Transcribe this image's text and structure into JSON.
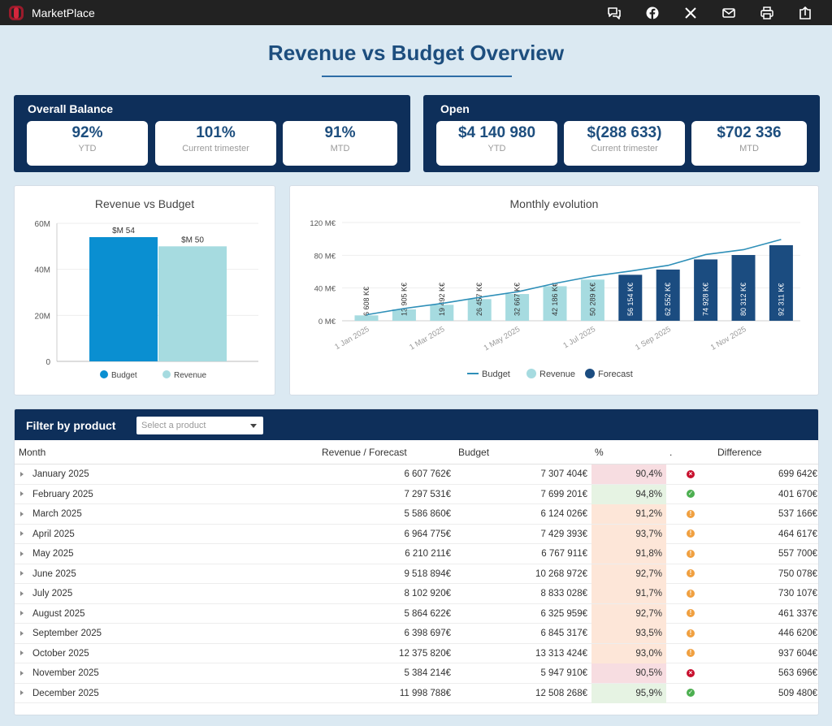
{
  "app": {
    "brand": "MarketPlace"
  },
  "toolbar": {
    "icons": [
      "comment-icon",
      "facebook-icon",
      "x-icon",
      "mail-icon",
      "print-icon",
      "export-icon"
    ]
  },
  "page": {
    "title": "Revenue vs Budget Overview"
  },
  "overall_balance": {
    "title": "Overall Balance",
    "cards": [
      {
        "value": "92%",
        "label": "YTD"
      },
      {
        "value": "101%",
        "label": "Current trimester"
      },
      {
        "value": "91%",
        "label": "MTD"
      }
    ]
  },
  "open": {
    "title": "Open",
    "cards": [
      {
        "value": "$4 140 980",
        "label": "YTD"
      },
      {
        "value": "$(288 633)",
        "label": "Current trimester"
      },
      {
        "value": "$702 336",
        "label": "MTD"
      }
    ]
  },
  "colors": {
    "navy": "#0e2f5a",
    "budget_bar": "#0a8fd1",
    "revenue_bar": "#a6dbe0",
    "forecast_bar": "#1b4c80",
    "budget_line": "#2e8fb8",
    "ok": "#4caf50",
    "warn": "#f0a040",
    "bad": "#c8102e"
  },
  "chart_data": [
    {
      "type": "bar",
      "title": "Revenue vs Budget",
      "categories": [
        "Budget",
        "Revenue"
      ],
      "values": [
        54,
        50
      ],
      "data_labels": [
        "$M 54",
        "$M 50"
      ],
      "ylim": [
        0,
        60
      ],
      "yticks": [
        0,
        20,
        40,
        60
      ],
      "ytick_labels": [
        "0",
        "20M",
        "40M",
        "60M"
      ],
      "legend": [
        "Budget",
        "Revenue"
      ]
    },
    {
      "type": "bar",
      "title": "Monthly evolution",
      "ylim": [
        0,
        120
      ],
      "yticks": [
        0,
        40,
        80,
        120
      ],
      "ytick_labels": [
        "0 M€",
        "40 M€",
        "80 M€",
        "120 M€"
      ],
      "x_tick_labels": [
        "1 Jan 2025",
        "1 Mar 2025",
        "1 May 2025",
        "1 Jul 2025",
        "1 Sep 2025",
        "1 Nov 2025"
      ],
      "bars": [
        {
          "value": 6.608,
          "label": "6 608 K€",
          "kind": "Revenue"
        },
        {
          "value": 13.905,
          "label": "13 905 K€",
          "kind": "Revenue"
        },
        {
          "value": 19.492,
          "label": "19 492 K€",
          "kind": "Revenue"
        },
        {
          "value": 26.457,
          "label": "26 457 K€",
          "kind": "Revenue"
        },
        {
          "value": 32.667,
          "label": "32 667 K€",
          "kind": "Revenue"
        },
        {
          "value": 42.186,
          "label": "42 186 K€",
          "kind": "Revenue"
        },
        {
          "value": 50.289,
          "label": "50 289 K€",
          "kind": "Revenue"
        },
        {
          "value": 56.154,
          "label": "56 154 K€",
          "kind": "Forecast"
        },
        {
          "value": 62.552,
          "label": "62 552 K€",
          "kind": "Forecast"
        },
        {
          "value": 74.928,
          "label": "74 928 K€",
          "kind": "Forecast"
        },
        {
          "value": 80.312,
          "label": "80 312 K€",
          "kind": "Forecast"
        },
        {
          "value": 92.311,
          "label": "92 311 K€",
          "kind": "Forecast"
        }
      ],
      "budget_line": [
        7.3,
        15.0,
        21.1,
        28.6,
        35.3,
        45.6,
        54.4,
        60.7,
        67.6,
        80.9,
        86.8,
        99.3
      ],
      "legend": [
        "Budget",
        "Revenue",
        "Forecast"
      ]
    }
  ],
  "table": {
    "filter_label": "Filter by product",
    "filter_placeholder": "Select a product",
    "columns": [
      "Month",
      "Revenue / Forecast",
      "Budget",
      "%",
      ".",
      "Difference"
    ],
    "rows": [
      {
        "month": "January 2025",
        "revenue": "6 607 762€",
        "budget": "7 307 404€",
        "pct": "90,4%",
        "status": "bad",
        "diff": "699 642€"
      },
      {
        "month": "February 2025",
        "revenue": "7 297 531€",
        "budget": "7 699 201€",
        "pct": "94,8%",
        "status": "ok",
        "diff": "401 670€"
      },
      {
        "month": "March 2025",
        "revenue": "5 586 860€",
        "budget": "6 124 026€",
        "pct": "91,2%",
        "status": "warn",
        "diff": "537 166€"
      },
      {
        "month": "April 2025",
        "revenue": "6 964 775€",
        "budget": "7 429 393€",
        "pct": "93,7%",
        "status": "warn",
        "diff": "464 617€"
      },
      {
        "month": "May 2025",
        "revenue": "6 210 211€",
        "budget": "6 767 911€",
        "pct": "91,8%",
        "status": "warn",
        "diff": "557 700€"
      },
      {
        "month": "June 2025",
        "revenue": "9 518 894€",
        "budget": "10 268 972€",
        "pct": "92,7%",
        "status": "warn",
        "diff": "750 078€"
      },
      {
        "month": "July 2025",
        "revenue": "8 102 920€",
        "budget": "8 833 028€",
        "pct": "91,7%",
        "status": "warn",
        "diff": "730 107€"
      },
      {
        "month": "August 2025",
        "revenue": "5 864 622€",
        "budget": "6 325 959€",
        "pct": "92,7%",
        "status": "warn",
        "diff": "461 337€"
      },
      {
        "month": "September 2025",
        "revenue": "6 398 697€",
        "budget": "6 845 317€",
        "pct": "93,5%",
        "status": "warn",
        "diff": "446 620€"
      },
      {
        "month": "October 2025",
        "revenue": "12 375 820€",
        "budget": "13 313 424€",
        "pct": "93,0%",
        "status": "warn",
        "diff": "937 604€"
      },
      {
        "month": "November 2025",
        "revenue": "5 384 214€",
        "budget": "5 947 910€",
        "pct": "90,5%",
        "status": "bad",
        "diff": "563 696€"
      },
      {
        "month": "December 2025",
        "revenue": "11 998 788€",
        "budget": "12 508 268€",
        "pct": "95,9%",
        "status": "ok",
        "diff": "509 480€"
      }
    ]
  }
}
